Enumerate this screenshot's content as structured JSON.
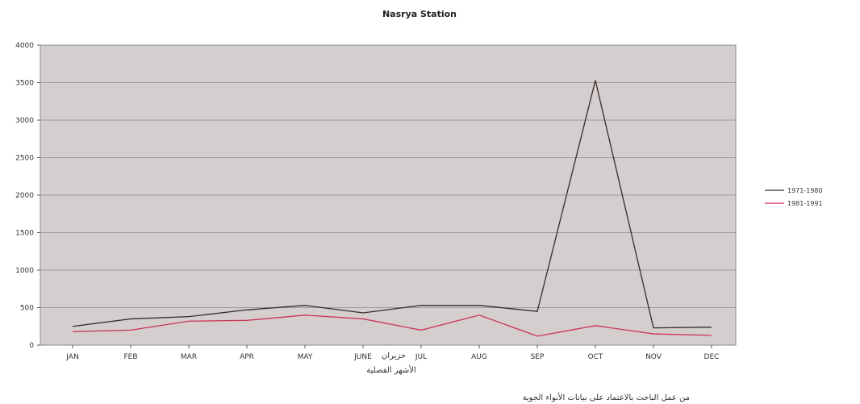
{
  "chart_data": {
    "type": "line",
    "title": "Nasrya Station",
    "xlabel": "الأشهر الفصلية",
    "ylabel": "",
    "categories": [
      "JAN",
      "FEB",
      "MAR",
      "APR",
      "MAY",
      "JUNE",
      "JUL",
      "AUG",
      "SEP",
      "OCT",
      "NOV",
      "DEC"
    ],
    "ylim": [
      0,
      4000
    ],
    "yticks": [
      0,
      500,
      1000,
      1500,
      2000,
      2500,
      3000,
      3500,
      4000
    ],
    "ytick_labels": [
      "0",
      "500",
      "1000",
      "1500",
      "2000",
      "2500",
      "3000",
      "3500",
      "4000"
    ],
    "grid": true,
    "legend_position": "right",
    "series": [
      {
        "name": "1971-1980",
        "color": "#3a2a2a",
        "values": [
          250,
          350,
          380,
          470,
          530,
          430,
          530,
          530,
          450,
          3530,
          230,
          240
        ]
      },
      {
        "name": "1981-1991",
        "color": "#cc3355",
        "values": [
          180,
          200,
          320,
          330,
          400,
          350,
          200,
          400,
          120,
          260,
          150,
          130
        ]
      }
    ],
    "annotations": {
      "june_overlay": "حزيران",
      "caption": "من عمل الباحث بالاعتماد على بيانات الأنواء الجوية"
    }
  }
}
